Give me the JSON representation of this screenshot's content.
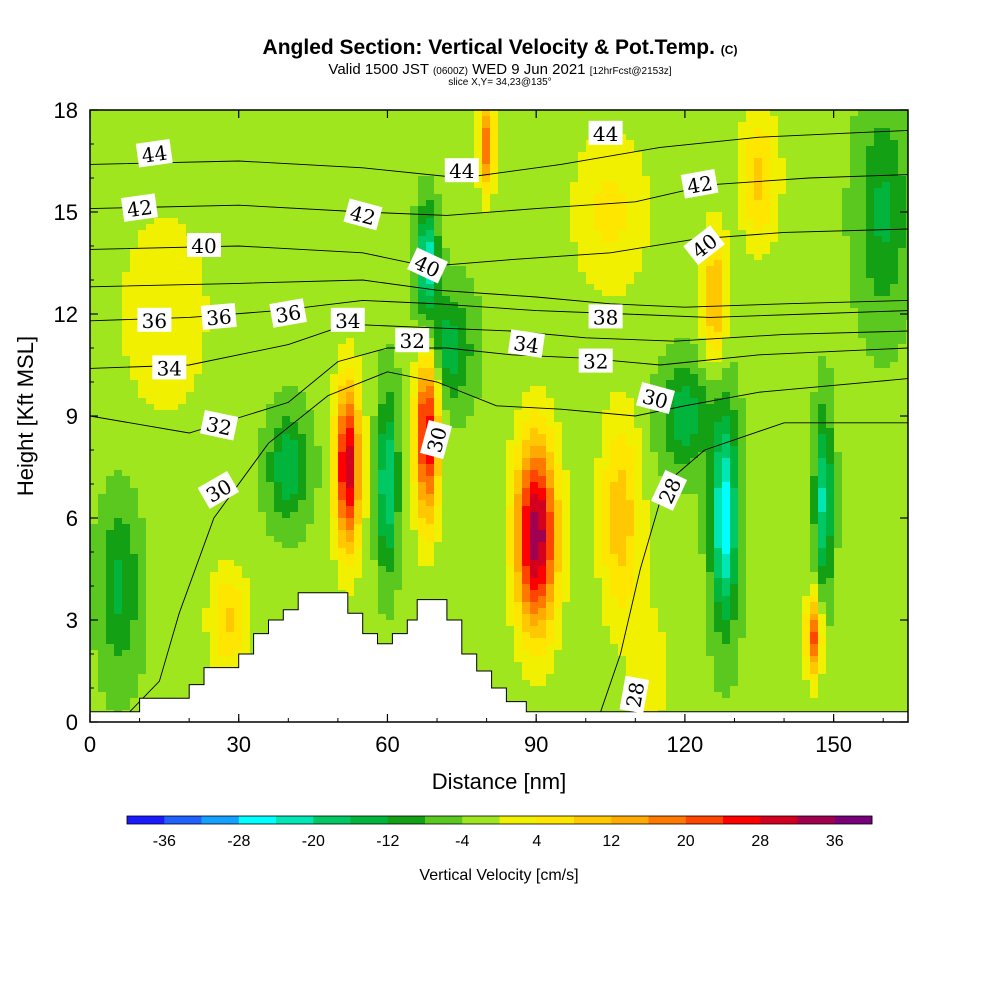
{
  "header": {
    "title_main": "Angled Section: Vertical Velocity & Pot.Temp.",
    "title_mark": "(C)",
    "valid_a": "Valid 1500 JST",
    "valid_b": "(0600Z)",
    "valid_c": "WED 9 Jun 2021",
    "valid_d": "[12hrFcst@2153z]",
    "slice": "slice X,Y= 34,23@135°"
  },
  "chart_data": {
    "type": "heatmap",
    "xlabel": "Distance [nm]",
    "ylabel": "Height [Kft MSL]",
    "xlim": [
      0,
      165
    ],
    "ylim": [
      0,
      18
    ],
    "x_ticks": [
      "0",
      "30",
      "60",
      "90",
      "120",
      "150"
    ],
    "x_tick_values": [
      0,
      30,
      60,
      90,
      120,
      150
    ],
    "y_ticks": [
      "0",
      "3",
      "6",
      "9",
      "12",
      "15",
      "18"
    ],
    "y_tick_values": [
      0,
      3,
      6,
      9,
      12,
      15,
      18
    ],
    "colorbar": {
      "label": "Vertical Velocity [cm/s]",
      "tick_labels": [
        "-36",
        "-28",
        "-20",
        "-12",
        "-4",
        "4",
        "12",
        "20",
        "28",
        "36"
      ],
      "tick_values": [
        -36,
        -28,
        -20,
        -12,
        -4,
        4,
        12,
        20,
        28,
        36
      ],
      "levels": [
        -40,
        -36,
        -32,
        -28,
        -24,
        -20,
        -16,
        -12,
        -8,
        -4,
        0,
        4,
        8,
        12,
        16,
        20,
        24,
        28,
        32,
        36,
        40
      ],
      "colors": [
        "#1a1aff",
        "#2060ff",
        "#14a0ff",
        "#00ffff",
        "#00e6b4",
        "#00c864",
        "#00b43c",
        "#14a014",
        "#5ac81e",
        "#a0e61e",
        "#f0f000",
        "#ffe600",
        "#ffc800",
        "#ffaa00",
        "#ff7800",
        "#ff4600",
        "#ff0000",
        "#d2001e",
        "#a00050",
        "#780078"
      ]
    },
    "terrain": [
      [
        0,
        0.3
      ],
      [
        10,
        0.3
      ],
      [
        10,
        0.7
      ],
      [
        20,
        0.7
      ],
      [
        20,
        1.1
      ],
      [
        23,
        1.1
      ],
      [
        23,
        1.6
      ],
      [
        30,
        1.6
      ],
      [
        30,
        2.0
      ],
      [
        33,
        2.0
      ],
      [
        33,
        2.6
      ],
      [
        36,
        2.6
      ],
      [
        36,
        3.0
      ],
      [
        39,
        3.0
      ],
      [
        39,
        3.3
      ],
      [
        42,
        3.3
      ],
      [
        42,
        3.8
      ],
      [
        52,
        3.8
      ],
      [
        52,
        3.2
      ],
      [
        55,
        3.2
      ],
      [
        55,
        2.6
      ],
      [
        58,
        2.6
      ],
      [
        58,
        2.3
      ],
      [
        61,
        2.3
      ],
      [
        61,
        2.6
      ],
      [
        64,
        2.6
      ],
      [
        64,
        3.0
      ],
      [
        66,
        3.0
      ],
      [
        66,
        3.6
      ],
      [
        72,
        3.6
      ],
      [
        72,
        3.0
      ],
      [
        75,
        3.0
      ],
      [
        75,
        2.0
      ],
      [
        78,
        2.0
      ],
      [
        78,
        1.5
      ],
      [
        81,
        1.5
      ],
      [
        81,
        1.0
      ],
      [
        84,
        1.0
      ],
      [
        84,
        0.6
      ],
      [
        88,
        0.6
      ],
      [
        88,
        0.3
      ],
      [
        165,
        0.3
      ]
    ],
    "velocity_cells": [
      {
        "x": 52,
        "z": 7.5,
        "sx": 2.6,
        "sz": 2.4,
        "v": 34
      },
      {
        "x": 68,
        "z": 8.5,
        "sx": 2.4,
        "sz": 2.6,
        "v": 32
      },
      {
        "x": 90,
        "z": 5.5,
        "sx": 4.2,
        "sz": 2.8,
        "v": 38
      },
      {
        "x": 107,
        "z": 6.0,
        "sx": 4.2,
        "sz": 3.0,
        "v": 14
      },
      {
        "x": 80,
        "z": 17.0,
        "sx": 1.6,
        "sz": 1.4,
        "v": 22
      },
      {
        "x": 126,
        "z": 12.5,
        "sx": 2.4,
        "sz": 2.0,
        "v": 16
      },
      {
        "x": 135,
        "z": 16.0,
        "sx": 4.0,
        "sz": 2.0,
        "v": 12
      },
      {
        "x": 105,
        "z": 15.0,
        "sx": 8.0,
        "sz": 2.5,
        "v": 8
      },
      {
        "x": 28,
        "z": 3.0,
        "sx": 4.0,
        "sz": 1.5,
        "v": 12
      },
      {
        "x": 146,
        "z": 2.5,
        "sx": 1.6,
        "sz": 1.2,
        "v": 24
      },
      {
        "x": 15,
        "z": 12.0,
        "sx": 12.0,
        "sz": 4.0,
        "v": 5
      },
      {
        "x": 60,
        "z": 7.0,
        "sx": 2.0,
        "sz": 2.4,
        "v": -18
      },
      {
        "x": 40,
        "z": 7.5,
        "sx": 4.0,
        "sz": 1.5,
        "v": -13
      },
      {
        "x": 72,
        "z": 11.0,
        "sx": 5.0,
        "sz": 1.6,
        "v": -12
      },
      {
        "x": 68,
        "z": 13.5,
        "sx": 2.0,
        "sz": 1.5,
        "v": -22
      },
      {
        "x": 128,
        "z": 6.0,
        "sx": 2.6,
        "sz": 3.0,
        "v": -24
      },
      {
        "x": 120,
        "z": 9.0,
        "sx": 5.0,
        "sz": 1.5,
        "v": -12
      },
      {
        "x": 148,
        "z": 6.5,
        "sx": 1.8,
        "sz": 2.5,
        "v": -18
      },
      {
        "x": 160,
        "z": 15.0,
        "sx": 5.0,
        "sz": 3.0,
        "v": -10
      },
      {
        "x": 6,
        "z": 4.0,
        "sx": 4.0,
        "sz": 2.5,
        "v": -10
      },
      {
        "x": 113,
        "z": 1.5,
        "sx": 4.0,
        "sz": 2.0,
        "v": 6
      }
    ],
    "theta_contours": [
      {
        "label": "28",
        "points": [
          [
            103,
            0.3
          ],
          [
            107,
            2.0
          ],
          [
            111,
            4.5
          ],
          [
            116,
            7.0
          ],
          [
            124,
            8.0
          ],
          [
            140,
            8.8
          ],
          [
            165,
            8.8
          ]
        ]
      },
      {
        "label": "30",
        "points": [
          [
            8,
            0.3
          ],
          [
            14,
            1.2
          ],
          [
            18,
            3.2
          ],
          [
            25,
            6.0
          ],
          [
            36,
            8.2
          ],
          [
            48,
            9.6
          ],
          [
            60,
            10.3
          ],
          [
            70,
            10.0
          ],
          [
            82,
            9.3
          ],
          [
            95,
            9.2
          ],
          [
            110,
            9.0
          ],
          [
            120,
            9.3
          ],
          [
            135,
            9.7
          ],
          [
            165,
            10.1
          ]
        ]
      },
      {
        "label": "32",
        "points": [
          [
            0,
            9.0
          ],
          [
            20,
            8.5
          ],
          [
            40,
            9.4
          ],
          [
            50,
            10.6
          ],
          [
            60,
            11.0
          ],
          [
            72,
            11.0
          ],
          [
            85,
            10.8
          ],
          [
            100,
            10.7
          ],
          [
            115,
            10.5
          ],
          [
            135,
            10.8
          ],
          [
            165,
            11.0
          ]
        ]
      },
      {
        "label": "34",
        "points": [
          [
            0,
            10.4
          ],
          [
            20,
            10.5
          ],
          [
            40,
            11.1
          ],
          [
            52,
            11.7
          ],
          [
            68,
            11.6
          ],
          [
            85,
            11.5
          ],
          [
            100,
            11.3
          ],
          [
            118,
            11.2
          ],
          [
            140,
            11.4
          ],
          [
            165,
            11.5
          ]
        ]
      },
      {
        "label": "36",
        "points": [
          [
            0,
            11.8
          ],
          [
            20,
            11.9
          ],
          [
            38,
            12.1
          ],
          [
            55,
            12.4
          ],
          [
            70,
            12.3
          ],
          [
            90,
            12.1
          ],
          [
            108,
            12.0
          ],
          [
            125,
            11.9
          ],
          [
            145,
            12.0
          ],
          [
            165,
            12.1
          ]
        ]
      },
      {
        "label": "38",
        "points": [
          [
            0,
            12.8
          ],
          [
            30,
            12.9
          ],
          [
            55,
            13.0
          ],
          [
            70,
            12.7
          ],
          [
            90,
            12.5
          ],
          [
            105,
            12.3
          ],
          [
            120,
            12.2
          ],
          [
            140,
            12.3
          ],
          [
            165,
            12.4
          ]
        ]
      },
      {
        "label": "40",
        "points": [
          [
            0,
            13.9
          ],
          [
            30,
            14.0
          ],
          [
            55,
            13.8
          ],
          [
            68,
            13.4
          ],
          [
            85,
            13.6
          ],
          [
            105,
            13.8
          ],
          [
            122,
            14.2
          ],
          [
            140,
            14.4
          ],
          [
            165,
            14.5
          ]
        ]
      },
      {
        "label": "42",
        "points": [
          [
            0,
            15.1
          ],
          [
            30,
            15.2
          ],
          [
            55,
            15.0
          ],
          [
            72,
            14.9
          ],
          [
            90,
            15.1
          ],
          [
            110,
            15.3
          ],
          [
            125,
            15.8
          ],
          [
            145,
            16.0
          ],
          [
            165,
            16.1
          ]
        ]
      },
      {
        "label": "44",
        "points": [
          [
            0,
            16.4
          ],
          [
            30,
            16.5
          ],
          [
            55,
            16.3
          ],
          [
            75,
            16.0
          ],
          [
            95,
            16.4
          ],
          [
            115,
            16.9
          ],
          [
            135,
            17.2
          ],
          [
            165,
            17.4
          ]
        ]
      }
    ],
    "contour_labels": [
      {
        "text": "44",
        "x": 13,
        "z": 16.7,
        "rot": -8
      },
      {
        "text": "44",
        "x": 75,
        "z": 16.2,
        "rot": 0
      },
      {
        "text": "44",
        "x": 104,
        "z": 17.3,
        "rot": 0
      },
      {
        "text": "42",
        "x": 10,
        "z": 15.1,
        "rot": -8
      },
      {
        "text": "42",
        "x": 55,
        "z": 14.9,
        "rot": 15
      },
      {
        "text": "42",
        "x": 123,
        "z": 15.8,
        "rot": -10
      },
      {
        "text": "40",
        "x": 23,
        "z": 14.0,
        "rot": 0
      },
      {
        "text": "40",
        "x": 68,
        "z": 13.4,
        "rot": 25
      },
      {
        "text": "40",
        "x": 124,
        "z": 14.0,
        "rot": -38
      },
      {
        "text": "38",
        "x": 104,
        "z": 11.9,
        "rot": 0
      },
      {
        "text": "36",
        "x": 13,
        "z": 11.8,
        "rot": 0
      },
      {
        "text": "36",
        "x": 26,
        "z": 11.9,
        "rot": -5
      },
      {
        "text": "36",
        "x": 40,
        "z": 12.0,
        "rot": -10
      },
      {
        "text": "34",
        "x": 52,
        "z": 11.8,
        "rot": 0
      },
      {
        "text": "34",
        "x": 16,
        "z": 10.4,
        "rot": 0
      },
      {
        "text": "34",
        "x": 88,
        "z": 11.1,
        "rot": 8
      },
      {
        "text": "32",
        "x": 65,
        "z": 11.2,
        "rot": 0
      },
      {
        "text": "32",
        "x": 102,
        "z": 10.6,
        "rot": 0
      },
      {
        "text": "32",
        "x": 26,
        "z": 8.7,
        "rot": 12
      },
      {
        "text": "30",
        "x": 70,
        "z": 8.3,
        "rot": -75
      },
      {
        "text": "30",
        "x": 114,
        "z": 9.5,
        "rot": 15
      },
      {
        "text": "30",
        "x": 26,
        "z": 6.8,
        "rot": -30
      },
      {
        "text": "28",
        "x": 117,
        "z": 6.8,
        "rot": -65
      },
      {
        "text": "28",
        "x": 110,
        "z": 0.8,
        "rot": -80
      }
    ]
  }
}
